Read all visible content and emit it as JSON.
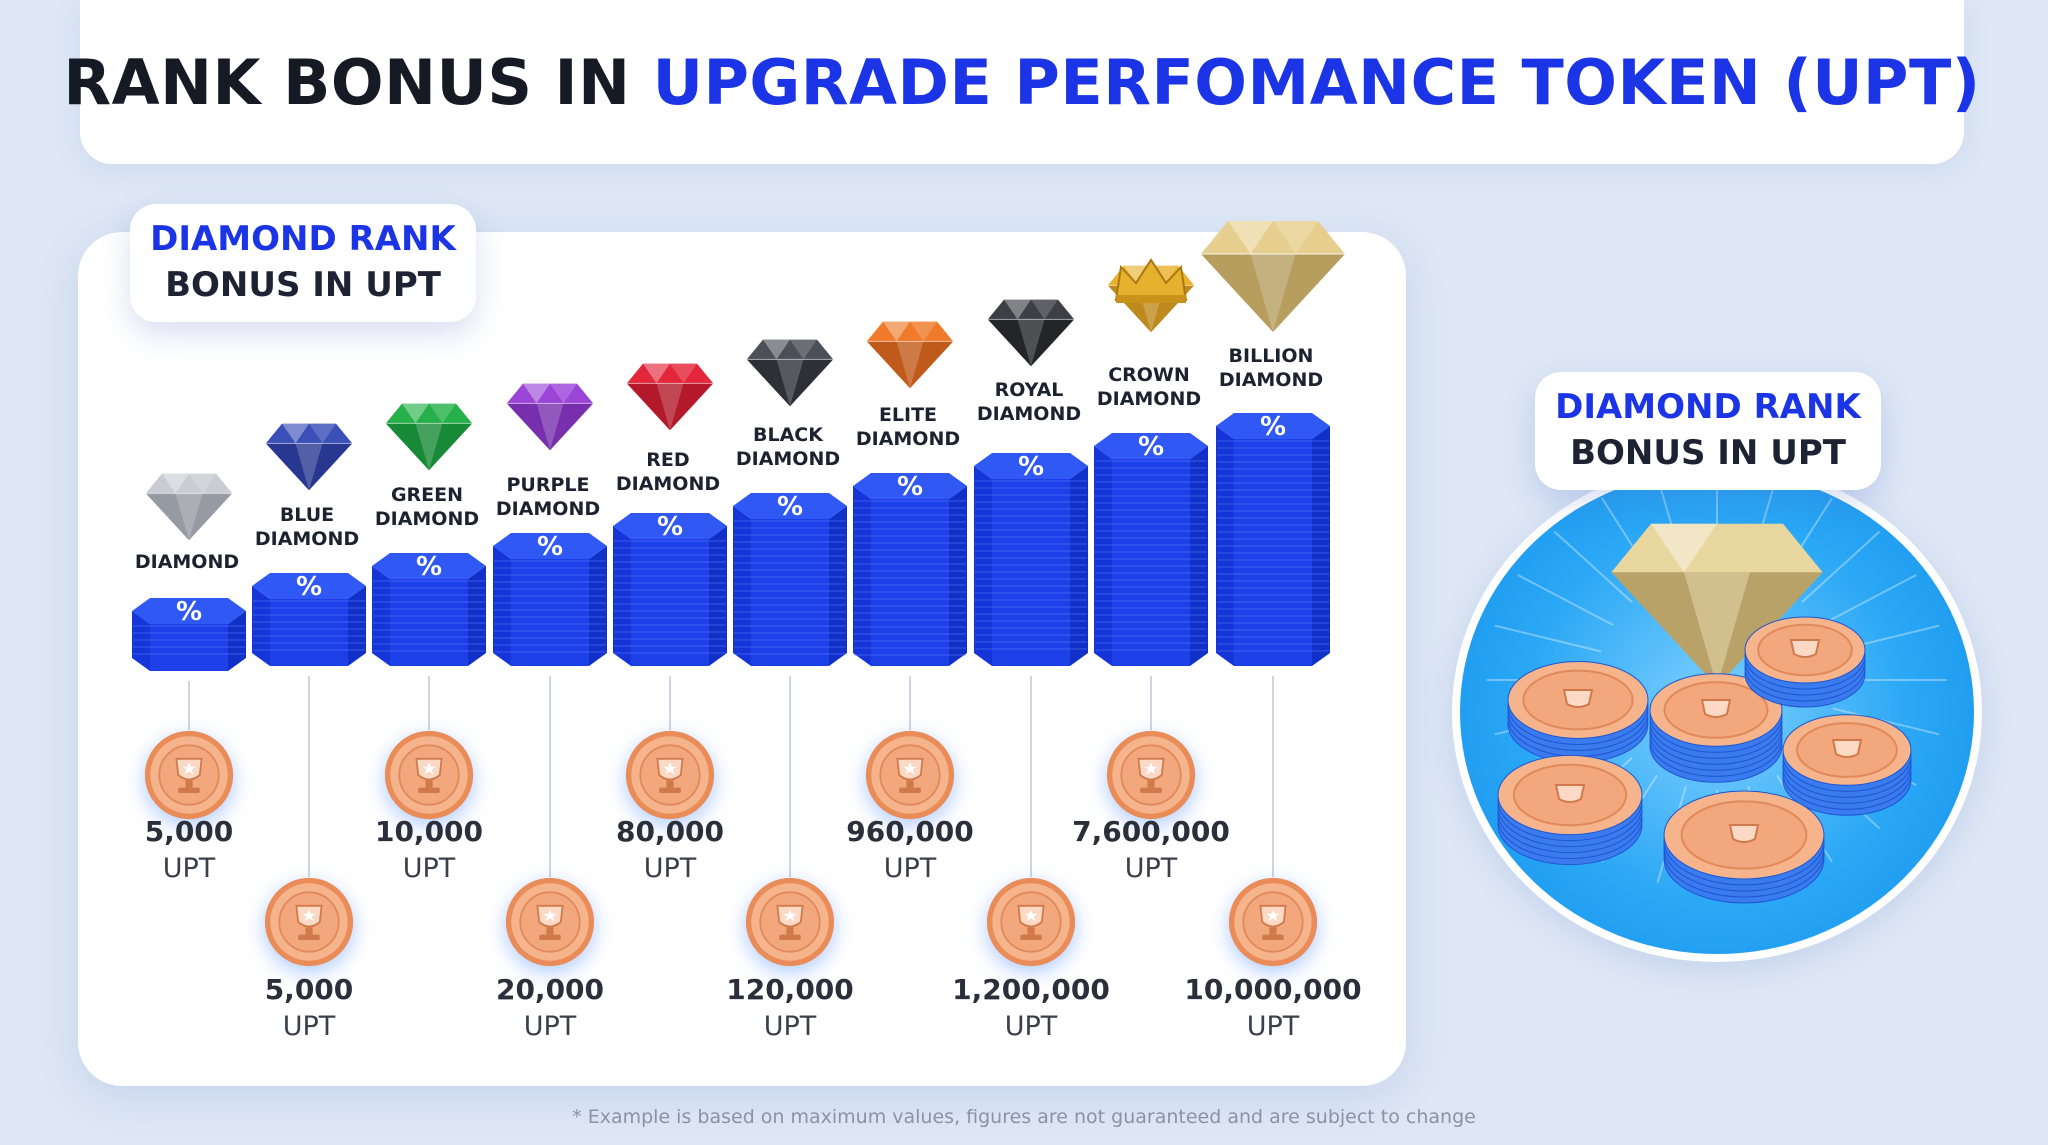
{
  "title": {
    "main": "RANK BONUS IN",
    "accent": "UPGRADE PERFOMANCE TOKEN (UPT)"
  },
  "left_label": {
    "line1": "DIAMOND RANK",
    "line2": "BONUS IN UPT"
  },
  "right_label": {
    "line1": "DIAMOND RANK",
    "line2": "BONUS IN UPT"
  },
  "ranks": [
    {
      "name1": "DIAMOND",
      "name2": "",
      "amount": "5,000",
      "unit": "UPT",
      "gem_color": "#c9ccd2",
      "gem_dark": "#6c717b"
    },
    {
      "name1": "BLUE",
      "name2": "DIAMOND",
      "amount": "5,000",
      "unit": "UPT",
      "gem_color": "#3a4fb8",
      "gem_dark": "#1a2470"
    },
    {
      "name1": "GREEN",
      "name2": "DIAMOND",
      "amount": "10,000",
      "unit": "UPT",
      "gem_color": "#26b04a",
      "gem_dark": "#0d6a27"
    },
    {
      "name1": "PURPLE",
      "name2": "DIAMOND",
      "amount": "20,000",
      "unit": "UPT",
      "gem_color": "#9b45d8",
      "gem_dark": "#5a1d8a"
    },
    {
      "name1": "RED",
      "name2": "DIAMOND",
      "amount": "80,000",
      "unit": "UPT",
      "gem_color": "#e3263a",
      "gem_dark": "#8d0f1e"
    },
    {
      "name1": "BLACK",
      "name2": "DIAMOND",
      "amount": "120,000",
      "unit": "UPT",
      "gem_color": "#4b4f57",
      "gem_dark": "#16181c"
    },
    {
      "name1": "ELITE",
      "name2": "DIAMOND",
      "amount": "960,000",
      "unit": "UPT",
      "gem_color": "#ee7a2a",
      "gem_dark": "#9a3f0c"
    },
    {
      "name1": "ROYAL",
      "name2": "DIAMOND",
      "amount": "1,200,000",
      "unit": "UPT",
      "gem_color": "#3d3f45",
      "gem_dark": "#0f1013"
    },
    {
      "name1": "CROWN",
      "name2": "DIAMOND",
      "amount": "7,600,000",
      "unit": "UPT",
      "gem_color": "#e8b230",
      "gem_dark": "#9a6a0e"
    },
    {
      "name1": "BILLION",
      "name2": "DIAMOND",
      "amount": "10,000,000",
      "unit": "UPT",
      "gem_color": "#e6cf8e",
      "gem_dark": "#8f7639"
    }
  ],
  "icons": {
    "stack_symbol": "%",
    "coin": "trophy-star-coin-icon",
    "gem": "diamond-gem-icon",
    "crown": "crown-icon"
  },
  "colors": {
    "accent": "#1b35e6",
    "stack_blue": "#1d40e8",
    "coin_orange": "#f2a77c"
  },
  "footnote": "* Example is based on maximum values, figures are not guaranteed and are subject to change"
}
